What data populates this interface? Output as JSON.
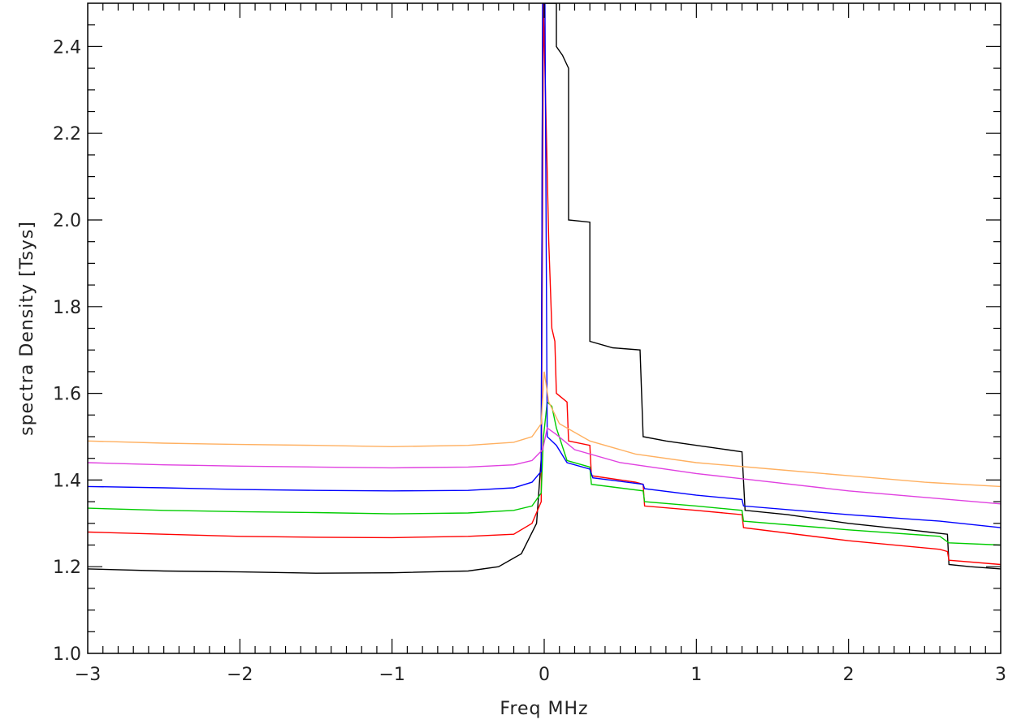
{
  "chart_data": {
    "type": "line",
    "title": "",
    "xlabel": "Freq MHz",
    "ylabel": "spectra Density [Tsys]",
    "xlim": [
      -3,
      3
    ],
    "ylim": [
      1.0,
      2.5
    ],
    "xticks": [
      -3,
      -2,
      -1,
      0,
      1,
      2,
      3
    ],
    "xtick_labels": [
      "−3",
      "−2",
      "−1",
      "0",
      "1",
      "2",
      "3"
    ],
    "yticks": [
      1.0,
      1.2,
      1.4,
      1.6,
      1.8,
      2.0,
      2.2,
      2.4
    ],
    "ytick_labels": [
      "1.0",
      "1.2",
      "1.4",
      "1.6",
      "1.8",
      "2.0",
      "2.2",
      "2.4"
    ],
    "grid": false,
    "legend": "none",
    "series": [
      {
        "color": "#000000",
        "points": [
          [
            -3.0,
            1.195
          ],
          [
            -2.5,
            1.19
          ],
          [
            -2.0,
            1.188
          ],
          [
            -1.5,
            1.185
          ],
          [
            -1.0,
            1.186
          ],
          [
            -0.5,
            1.19
          ],
          [
            -0.3,
            1.2
          ],
          [
            -0.15,
            1.23
          ],
          [
            -0.05,
            1.3
          ],
          [
            -0.02,
            1.45
          ],
          [
            -0.01,
            2.5
          ],
          [
            0.08,
            2.5
          ],
          [
            0.08,
            2.4
          ],
          [
            0.12,
            2.38
          ],
          [
            0.16,
            2.35
          ],
          [
            0.16,
            2.0
          ],
          [
            0.3,
            1.995
          ],
          [
            0.3,
            1.72
          ],
          [
            0.45,
            1.705
          ],
          [
            0.63,
            1.7
          ],
          [
            0.65,
            1.5
          ],
          [
            0.8,
            1.49
          ],
          [
            1.0,
            1.48
          ],
          [
            1.2,
            1.47
          ],
          [
            1.3,
            1.465
          ],
          [
            1.32,
            1.33
          ],
          [
            1.6,
            1.32
          ],
          [
            2.0,
            1.3
          ],
          [
            2.4,
            1.285
          ],
          [
            2.65,
            1.275
          ],
          [
            2.66,
            1.205
          ],
          [
            2.8,
            1.2
          ],
          [
            3.0,
            1.195
          ]
        ]
      },
      {
        "color": "#ff0000",
        "points": [
          [
            -3.0,
            1.28
          ],
          [
            -2.5,
            1.275
          ],
          [
            -2.0,
            1.27
          ],
          [
            -1.5,
            1.268
          ],
          [
            -1.0,
            1.267
          ],
          [
            -0.5,
            1.27
          ],
          [
            -0.2,
            1.275
          ],
          [
            -0.08,
            1.3
          ],
          [
            -0.02,
            1.35
          ],
          [
            -0.005,
            2.5
          ],
          [
            0.03,
            1.95
          ],
          [
            0.05,
            1.75
          ],
          [
            0.07,
            1.72
          ],
          [
            0.08,
            1.6
          ],
          [
            0.15,
            1.58
          ],
          [
            0.16,
            1.49
          ],
          [
            0.3,
            1.48
          ],
          [
            0.31,
            1.41
          ],
          [
            0.6,
            1.395
          ],
          [
            0.65,
            1.39
          ],
          [
            0.66,
            1.34
          ],
          [
            1.0,
            1.33
          ],
          [
            1.3,
            1.32
          ],
          [
            1.31,
            1.29
          ],
          [
            2.0,
            1.26
          ],
          [
            2.6,
            1.24
          ],
          [
            2.65,
            1.235
          ],
          [
            2.66,
            1.215
          ],
          [
            3.0,
            1.205
          ]
        ]
      },
      {
        "color": "#00cc00",
        "points": [
          [
            -3.0,
            1.335
          ],
          [
            -2.5,
            1.33
          ],
          [
            -2.0,
            1.327
          ],
          [
            -1.5,
            1.325
          ],
          [
            -1.0,
            1.322
          ],
          [
            -0.5,
            1.324
          ],
          [
            -0.2,
            1.33
          ],
          [
            -0.08,
            1.34
          ],
          [
            -0.02,
            1.37
          ],
          [
            -0.005,
            1.5
          ],
          [
            0.02,
            1.58
          ],
          [
            0.05,
            1.57
          ],
          [
            0.08,
            1.52
          ],
          [
            0.15,
            1.445
          ],
          [
            0.3,
            1.43
          ],
          [
            0.31,
            1.39
          ],
          [
            0.65,
            1.375
          ],
          [
            0.66,
            1.35
          ],
          [
            1.0,
            1.34
          ],
          [
            1.3,
            1.33
          ],
          [
            1.31,
            1.305
          ],
          [
            2.0,
            1.285
          ],
          [
            2.6,
            1.27
          ],
          [
            2.66,
            1.255
          ],
          [
            3.0,
            1.25
          ]
        ]
      },
      {
        "color": "#0000ff",
        "points": [
          [
            -3.0,
            1.385
          ],
          [
            -2.5,
            1.382
          ],
          [
            -2.0,
            1.378
          ],
          [
            -1.5,
            1.376
          ],
          [
            -1.0,
            1.375
          ],
          [
            -0.5,
            1.376
          ],
          [
            -0.2,
            1.382
          ],
          [
            -0.08,
            1.395
          ],
          [
            -0.02,
            1.42
          ],
          [
            -0.01,
            2.5
          ],
          [
            0.005,
            2.5
          ],
          [
            0.02,
            1.5
          ],
          [
            0.08,
            1.48
          ],
          [
            0.15,
            1.44
          ],
          [
            0.3,
            1.425
          ],
          [
            0.32,
            1.405
          ],
          [
            0.65,
            1.39
          ],
          [
            0.66,
            1.38
          ],
          [
            1.0,
            1.365
          ],
          [
            1.3,
            1.355
          ],
          [
            1.31,
            1.34
          ],
          [
            2.0,
            1.32
          ],
          [
            2.6,
            1.305
          ],
          [
            3.0,
            1.29
          ]
        ]
      },
      {
        "color": "#e040e0",
        "points": [
          [
            -3.0,
            1.44
          ],
          [
            -2.5,
            1.435
          ],
          [
            -2.0,
            1.432
          ],
          [
            -1.5,
            1.43
          ],
          [
            -1.0,
            1.428
          ],
          [
            -0.5,
            1.43
          ],
          [
            -0.2,
            1.435
          ],
          [
            -0.08,
            1.445
          ],
          [
            -0.01,
            1.47
          ],
          [
            0.02,
            1.52
          ],
          [
            0.08,
            1.505
          ],
          [
            0.2,
            1.47
          ],
          [
            0.5,
            1.44
          ],
          [
            1.0,
            1.415
          ],
          [
            1.5,
            1.395
          ],
          [
            2.0,
            1.375
          ],
          [
            2.5,
            1.36
          ],
          [
            3.0,
            1.345
          ]
        ]
      },
      {
        "color": "#ffb060",
        "points": [
          [
            -3.0,
            1.49
          ],
          [
            -2.5,
            1.485
          ],
          [
            -2.0,
            1.482
          ],
          [
            -1.5,
            1.48
          ],
          [
            -1.0,
            1.477
          ],
          [
            -0.5,
            1.48
          ],
          [
            -0.2,
            1.487
          ],
          [
            -0.08,
            1.5
          ],
          [
            -0.02,
            1.53
          ],
          [
            0.0,
            1.65
          ],
          [
            0.03,
            1.58
          ],
          [
            0.1,
            1.53
          ],
          [
            0.3,
            1.49
          ],
          [
            0.6,
            1.46
          ],
          [
            1.0,
            1.44
          ],
          [
            1.5,
            1.425
          ],
          [
            2.0,
            1.41
          ],
          [
            2.5,
            1.395
          ],
          [
            3.0,
            1.385
          ]
        ]
      }
    ]
  }
}
